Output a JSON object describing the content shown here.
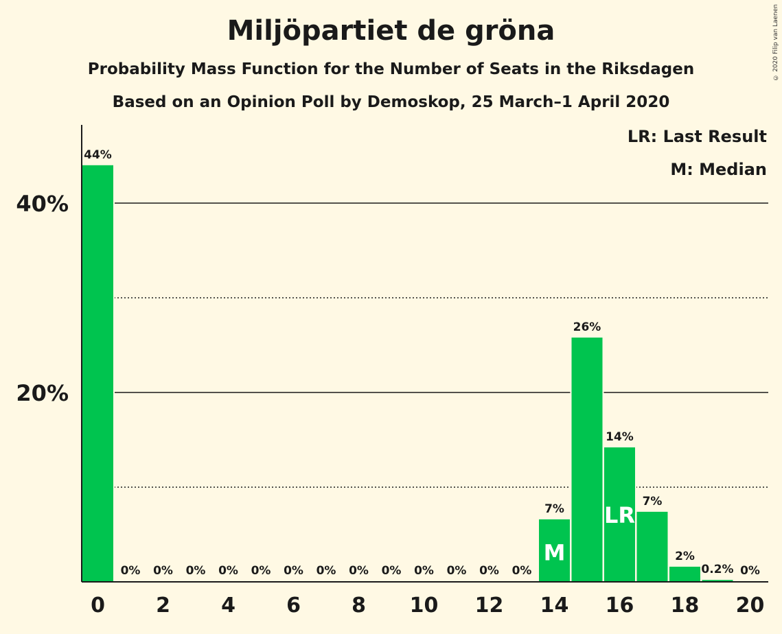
{
  "chart_data": {
    "type": "bar",
    "title": "Miljöpartiet de gröna",
    "subtitle": "Probability Mass Function for the Number of Seats in the Riksdagen",
    "subtitle2": "Based on an Opinion Poll by Demoskop, 25 March–1 April 2020",
    "copyright": "© 2020 Filip van Laenen",
    "legend": {
      "lr": "LR: Last Result",
      "m": "M: Median",
      "placement": "top-right"
    },
    "x": [
      0,
      1,
      2,
      3,
      4,
      5,
      6,
      7,
      8,
      9,
      10,
      11,
      12,
      13,
      14,
      15,
      16,
      17,
      18,
      19,
      20
    ],
    "values": [
      44,
      0,
      0,
      0,
      0,
      0,
      0,
      0,
      0,
      0,
      0,
      0,
      0,
      0,
      6.6,
      25.8,
      14.2,
      7.4,
      1.6,
      0.2,
      0
    ],
    "value_labels": [
      "44%",
      "0%",
      "0%",
      "0%",
      "0%",
      "0%",
      "0%",
      "0%",
      "0%",
      "0%",
      "0%",
      "0%",
      "0%",
      "0%",
      "7%",
      "26%",
      "14%",
      "7%",
      "2%",
      "0.2%",
      "0%"
    ],
    "x_tick_labels": [
      "0",
      "2",
      "4",
      "6",
      "8",
      "10",
      "12",
      "14",
      "16",
      "18",
      "20"
    ],
    "x_ticks": [
      0,
      2,
      4,
      6,
      8,
      10,
      12,
      14,
      16,
      18,
      20
    ],
    "y_ticks": [
      {
        "value": 20,
        "label": "20%"
      },
      {
        "value": 40,
        "label": "40%"
      }
    ],
    "y_minor_gridlines": [
      10,
      30
    ],
    "ylim": [
      0,
      48
    ],
    "median_seat": 14,
    "median_marker": "M",
    "last_result_seat": 16,
    "last_result_marker": "LR",
    "bar_color": "#00C44F",
    "grid": true
  }
}
